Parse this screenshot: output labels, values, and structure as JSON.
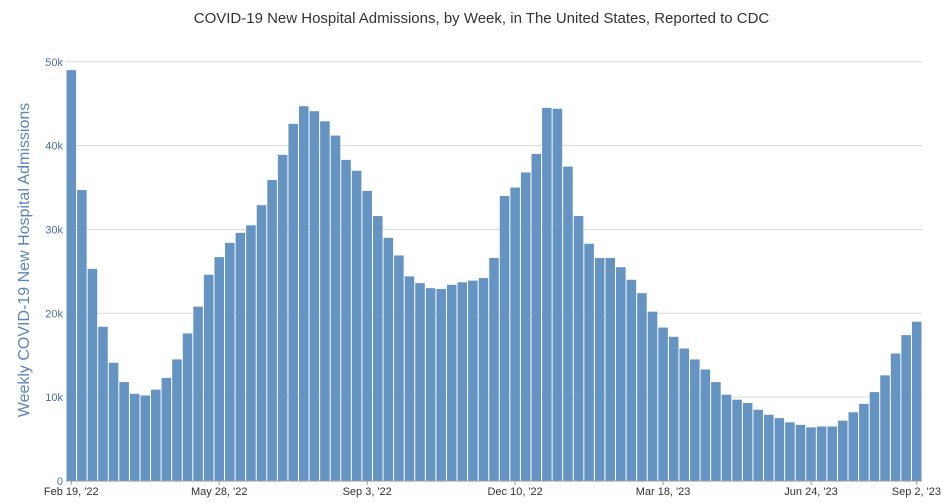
{
  "chart_data": {
    "type": "bar",
    "title": "COVID-19 New Hospital Admissions, by Week, in The United States, Reported to CDC",
    "xlabel": "",
    "ylabel": "Weekly COVID-19 New Hospital Admissions",
    "ylim": [
      0,
      52000
    ],
    "y_ticks": [
      {
        "value": 0,
        "label": "0"
      },
      {
        "value": 10000,
        "label": "10k"
      },
      {
        "value": 20000,
        "label": "20k"
      },
      {
        "value": 30000,
        "label": "30k"
      },
      {
        "value": 40000,
        "label": "40k"
      },
      {
        "value": 50000,
        "label": "50k"
      }
    ],
    "x_ticks": [
      {
        "index": 0,
        "label": "Feb 19, '22"
      },
      {
        "index": 14,
        "label": "May 28, '22"
      },
      {
        "index": 28,
        "label": "Sep 3, '22"
      },
      {
        "index": 42,
        "label": "Dec 10, '22"
      },
      {
        "index": 56,
        "label": "Mar 18, '23"
      },
      {
        "index": 70,
        "label": "Jun 24, '23"
      },
      {
        "index": 80,
        "label": "Sep 2, '23"
      }
    ],
    "grid": true,
    "bar_color": "#6594c2",
    "values": [
      49000,
      34700,
      25300,
      18400,
      14100,
      11800,
      10400,
      10200,
      10900,
      12300,
      14500,
      17600,
      20800,
      24600,
      26700,
      28400,
      29600,
      30500,
      32900,
      35900,
      38900,
      42600,
      44700,
      44100,
      42900,
      41200,
      38300,
      37000,
      34600,
      31600,
      29000,
      26900,
      24400,
      23600,
      23000,
      22900,
      23400,
      23700,
      23900,
      24200,
      26600,
      34000,
      35000,
      36800,
      39000,
      44500,
      44400,
      37500,
      31600,
      28300,
      26600,
      26600,
      25500,
      24000,
      22400,
      20200,
      18300,
      17200,
      15800,
      14500,
      13300,
      11800,
      10300,
      9700,
      9300,
      8500,
      7900,
      7500,
      7000,
      6700,
      6400,
      6500,
      6500,
      7200,
      8200,
      9200,
      10600,
      12600,
      15200,
      17400,
      19000
    ]
  }
}
